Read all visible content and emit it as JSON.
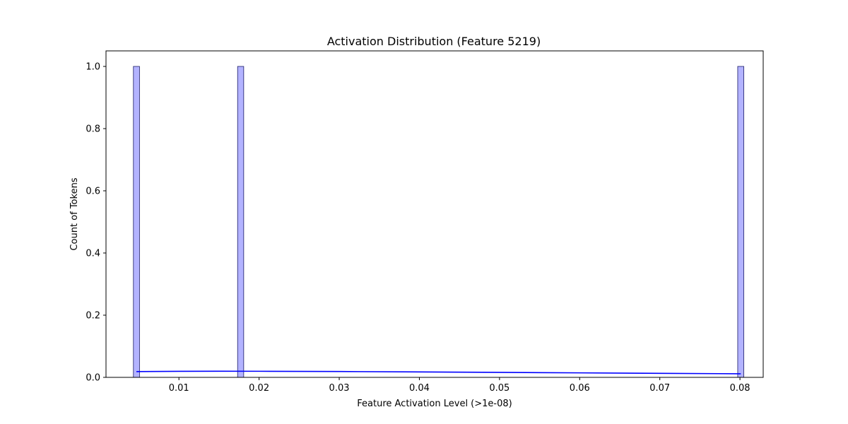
{
  "chart_data": {
    "type": "bar",
    "title": "Activation Distribution (Feature 5219)",
    "xlabel": "Feature Activation Level (>1e-08)",
    "ylabel": "Count of Tokens",
    "xlim": [
      0.0009,
      0.0829
    ],
    "ylim": [
      0,
      1.05
    ],
    "x_ticks": [
      0.01,
      0.02,
      0.03,
      0.04,
      0.05,
      0.06,
      0.07,
      0.08
    ],
    "x_tick_labels": [
      "0.01",
      "0.02",
      "0.03",
      "0.04",
      "0.05",
      "0.06",
      "0.07",
      "0.08"
    ],
    "y_ticks": [
      0.0,
      0.2,
      0.4,
      0.6,
      0.8,
      1.0
    ],
    "y_tick_labels": [
      "0.0",
      "0.2",
      "0.4",
      "0.6",
      "0.8",
      "1.0"
    ],
    "bin_width": 0.00076,
    "bars": [
      {
        "x": 0.0047,
        "count": 1
      },
      {
        "x": 0.0177,
        "count": 1
      },
      {
        "x": 0.0801,
        "count": 1
      }
    ],
    "kde": {
      "x": [
        0.0047,
        0.01,
        0.015,
        0.02,
        0.03,
        0.04,
        0.05,
        0.06,
        0.07,
        0.0801
      ],
      "y": [
        0.0185,
        0.0195,
        0.0198,
        0.0196,
        0.0188,
        0.0175,
        0.016,
        0.0145,
        0.013,
        0.0115
      ]
    },
    "colors": {
      "bar_fill": "#b3b3ff",
      "bar_edge": "#1a1a66",
      "kde_line": "#0000ff"
    },
    "grid": false,
    "legend": "none"
  }
}
